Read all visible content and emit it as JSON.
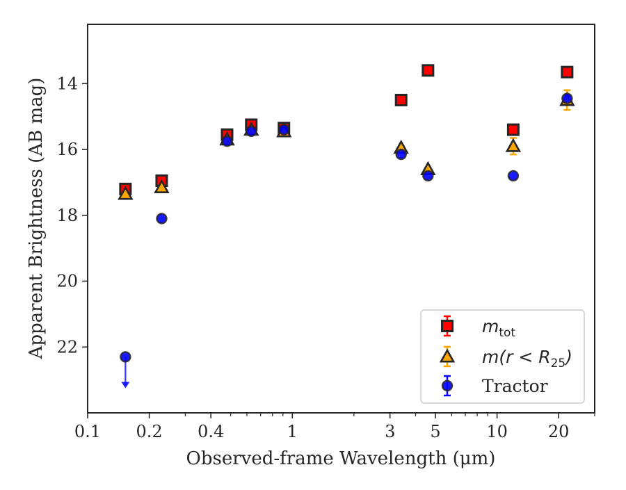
{
  "chart_data": {
    "type": "scatter",
    "xlabel": "Observed-frame Wavelength (μm)",
    "ylabel": "Apparent Brightness (AB mag)",
    "x_scale": "log",
    "xlim": [
      0.1,
      30
    ],
    "ylim": [
      24.0,
      12.2
    ],
    "y_inverted": true,
    "grid": false,
    "legend_position": "lower-right",
    "x_ticks": [
      0.1,
      0.2,
      0.4,
      1,
      3,
      5,
      10,
      20
    ],
    "x_tick_labels": [
      "0.1",
      "0.2",
      "0.4",
      "1",
      "3",
      "5",
      "10",
      "20"
    ],
    "y_ticks": [
      14,
      16,
      18,
      20,
      22
    ],
    "y_tick_labels": [
      "14",
      "16",
      "18",
      "20",
      "22"
    ],
    "legend": [
      {
        "label": "m",
        "sub": "tot",
        "label_suffix": ""
      },
      {
        "label": "m(r < R",
        "sub": "25",
        "label_suffix": ")"
      },
      {
        "label": "Tractor",
        "sub": "",
        "label_suffix": ""
      }
    ],
    "series": [
      {
        "marker": "square",
        "color": "#ff0000",
        "edge": "#262626",
        "x": [
          0.153,
          0.23,
          0.48,
          0.63,
          0.91,
          3.4,
          4.6,
          12.0,
          22.0
        ],
        "y": [
          17.2,
          16.95,
          15.55,
          15.25,
          15.35,
          14.5,
          13.6,
          15.4,
          13.65
        ]
      },
      {
        "marker": "triangle",
        "color": "#ffa500",
        "edge": "#262626",
        "x": [
          0.153,
          0.23,
          0.48,
          0.63,
          0.91,
          3.4,
          4.6,
          12.0,
          22.0
        ],
        "y": [
          17.35,
          17.15,
          15.7,
          15.4,
          15.45,
          15.95,
          16.6,
          15.9,
          14.5
        ],
        "yerr": [
          0,
          0,
          0,
          0,
          0,
          0,
          0,
          0.25,
          0.3
        ]
      },
      {
        "marker": "circle",
        "color": "#0000ff",
        "edge": "#262626",
        "x": [
          0.153,
          0.23,
          0.48,
          0.63,
          0.91,
          3.4,
          4.6,
          12.0,
          22.0
        ],
        "y": [
          22.3,
          18.1,
          15.75,
          15.45,
          15.4,
          16.15,
          16.8,
          16.8,
          14.45
        ],
        "upper_limit": [
          true,
          false,
          false,
          false,
          false,
          false,
          false,
          false,
          false
        ]
      }
    ]
  }
}
